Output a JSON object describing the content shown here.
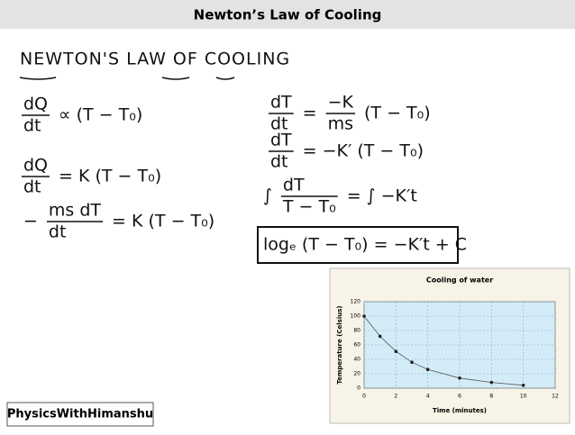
{
  "header": {
    "title": "Newton’s Law of Cooling"
  },
  "board": {
    "heading": "NEWTON'S LAW OF COOLING",
    "left_equations": [
      {
        "parts": [
          {
            "num": "dQ",
            "den": "dt"
          },
          {
            "text": "∝ (T − T₀)"
          }
        ]
      },
      {
        "parts": [
          {
            "num": "dQ",
            "den": "dt"
          },
          {
            "text": "= K (T − T₀)"
          }
        ]
      },
      {
        "parts": [
          {
            "text": "−"
          },
          {
            "num": "ms dT",
            "den": "dt"
          },
          {
            "text": "= K (T − T₀)"
          }
        ]
      }
    ],
    "right_equations": [
      {
        "parts": [
          {
            "num": "dT",
            "den": "dt"
          },
          {
            "text": "="
          },
          {
            "num": "−K",
            "den": "ms"
          },
          {
            "text": "(T − T₀)"
          }
        ]
      },
      {
        "parts": [
          {
            "num": "dT",
            "den": "dt"
          },
          {
            "text": "= −K′ (T − T₀)"
          }
        ]
      },
      {
        "parts": [
          {
            "text": "∫"
          },
          {
            "num": "dT",
            "den": "T − T₀"
          },
          {
            "text": "= ∫ −K′t"
          }
        ]
      },
      {
        "parts": [
          {
            "text": "logₑ (T − T₀) = −K′t + C"
          }
        ]
      }
    ]
  },
  "chart_data": {
    "type": "scatter",
    "title": "Cooling of water",
    "x_label": "Time (minutes)",
    "y_label": "Temperature (Celsius)",
    "x": [
      0,
      1,
      2,
      3,
      4,
      6,
      8,
      10
    ],
    "values": [
      100,
      72,
      51,
      36,
      26,
      14,
      8,
      4
    ],
    "color": "#222222",
    "xlim": [
      0,
      12
    ],
    "ylim": [
      0,
      120
    ],
    "xticks": [
      0,
      2,
      4,
      6,
      8,
      10,
      12
    ],
    "yticks": [
      0,
      20,
      40,
      60,
      80,
      100,
      120
    ],
    "grid": true
  },
  "footer": {
    "credit": "PhysicsWithHimanshu"
  }
}
